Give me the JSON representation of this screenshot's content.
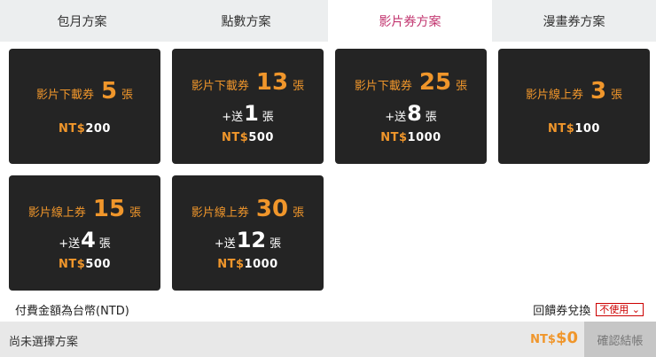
{
  "tabs": [
    {
      "label": "包月方案"
    },
    {
      "label": "點數方案"
    },
    {
      "label": "影片券方案"
    },
    {
      "label": "漫畫券方案"
    }
  ],
  "active_tab": 2,
  "plans": [
    {
      "title": "影片下載券",
      "count": "5",
      "unit": "張",
      "bonus": null,
      "currency": "NT$",
      "price": "200"
    },
    {
      "title": "影片下載券",
      "count": "13",
      "unit": "張",
      "bonus": {
        "prefix": "+送",
        "count": "1",
        "unit": "張"
      },
      "currency": "NT$",
      "price": "500"
    },
    {
      "title": "影片下載券",
      "count": "25",
      "unit": "張",
      "bonus": {
        "prefix": "+送",
        "count": "8",
        "unit": "張"
      },
      "currency": "NT$",
      "price": "1000"
    },
    {
      "title": "影片線上券",
      "count": "3",
      "unit": "張",
      "bonus": null,
      "currency": "NT$",
      "price": "100"
    },
    {
      "title": "影片線上券",
      "count": "15",
      "unit": "張",
      "bonus": {
        "prefix": "+送",
        "count": "4",
        "unit": "張"
      },
      "currency": "NT$",
      "price": "500"
    },
    {
      "title": "影片線上券",
      "count": "30",
      "unit": "張",
      "bonus": {
        "prefix": "+送",
        "count": "12",
        "unit": "張"
      },
      "currency": "NT$",
      "price": "1000"
    }
  ],
  "note": "付費金額為台幣(NTD)",
  "coupon": {
    "label": "回饋券兌換",
    "selected": "不使用"
  },
  "footer": {
    "status": "尚未選擇方案",
    "currency": "NT$",
    "total": "$0",
    "confirm": "確認結帳"
  },
  "colors": {
    "accent": "#f0962b",
    "active_tab": "#c2356f",
    "card_bg": "#242424"
  }
}
